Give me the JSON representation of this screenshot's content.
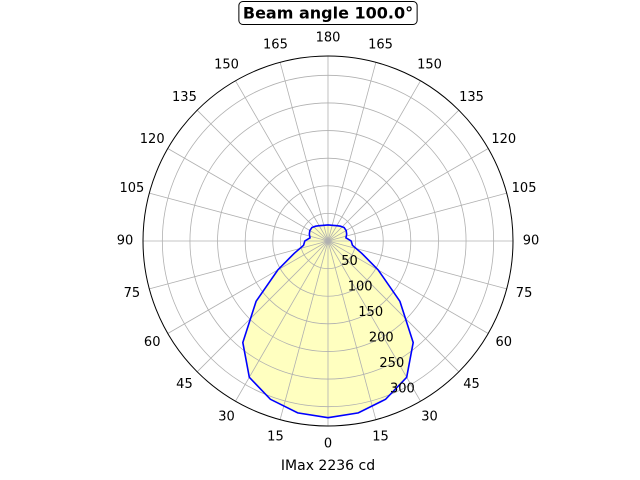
{
  "chart_data": {
    "type": "polar",
    "title": "Beam angle 100.0°",
    "xlabel": "IMax 2236 cd",
    "x": [
      0,
      10,
      20,
      30,
      40,
      50,
      60,
      70,
      80,
      90,
      100,
      110,
      120,
      130,
      140,
      150,
      160,
      170,
      180,
      190,
      200,
      210,
      220,
      230,
      240,
      250,
      260,
      270,
      280,
      290,
      300,
      310,
      320,
      330,
      340,
      350
    ],
    "values": [
      320,
      316,
      305,
      285,
      240,
      170,
      105,
      65,
      45,
      42,
      33,
      36,
      38,
      38,
      35,
      32,
      30,
      29,
      29,
      29,
      30,
      32,
      35,
      38,
      38,
      36,
      33,
      42,
      45,
      65,
      105,
      170,
      240,
      285,
      305,
      316
    ],
    "color": "#0000ff",
    "fill_color": "#ffffc0",
    "rlim": [
      0,
      335
    ],
    "rticks": [
      50,
      100,
      150,
      200,
      250,
      300
    ],
    "thetaticks": [
      0,
      15,
      30,
      45,
      60,
      75,
      90,
      105,
      120,
      135,
      150,
      165,
      180,
      {
        "value": 195,
        "label": "165"
      },
      {
        "value": 210,
        "label": "150"
      },
      {
        "value": 225,
        "label": "135"
      },
      {
        "value": 240,
        "label": "120"
      },
      {
        "value": 255,
        "label": "105"
      },
      {
        "value": 270,
        "label": "90"
      },
      {
        "value": 285,
        "label": "75"
      },
      {
        "value": 300,
        "label": "60"
      },
      {
        "value": 315,
        "label": "45"
      },
      {
        "value": 330,
        "label": "30"
      },
      {
        "value": 345,
        "label": "15"
      }
    ],
    "theta_zero_location": "S",
    "grid": true
  }
}
